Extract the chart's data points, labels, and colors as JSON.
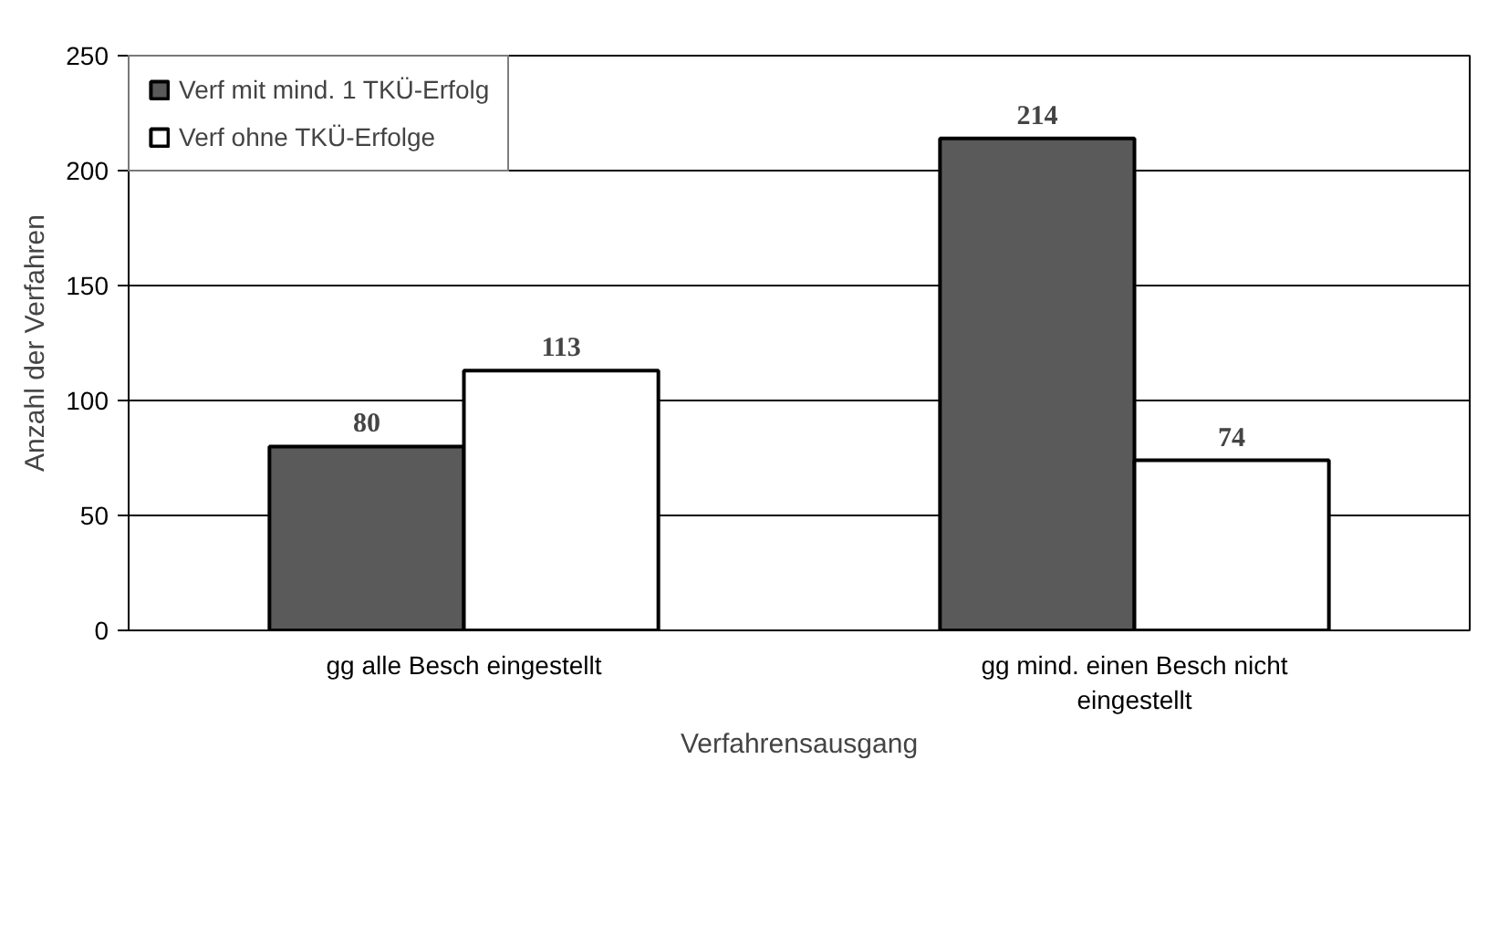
{
  "chart_data": {
    "type": "bar",
    "xlabel": "Verfahrensausgang",
    "ylabel": "Anzahl der Verfahren",
    "categories": [
      "gg alle Besch eingestellt",
      "gg mind. einen Besch nicht eingestellt"
    ],
    "series": [
      {
        "name": "Verf mit mind. 1 TKÜ-Erfolg",
        "color": "#5a5a5a",
        "values": [
          80,
          214
        ]
      },
      {
        "name": "Verf ohne TKÜ-Erfolge",
        "color": "#ffffff",
        "values": [
          113,
          74
        ]
      }
    ],
    "ylim": [
      0,
      250
    ],
    "yticks": [
      0,
      50,
      100,
      150,
      200,
      250
    ],
    "grid": "y",
    "legend": "top left",
    "data_labels": true
  }
}
